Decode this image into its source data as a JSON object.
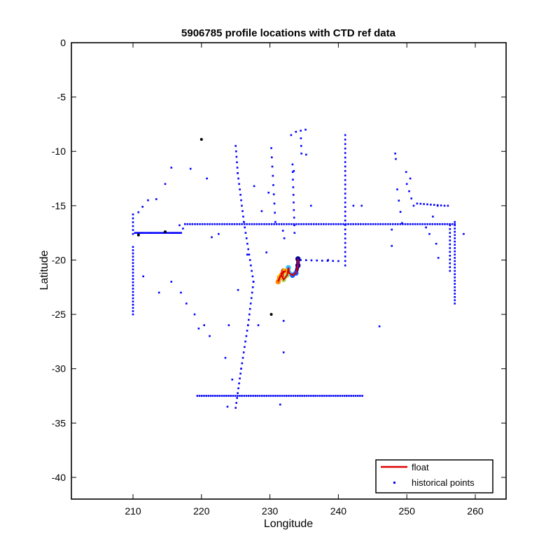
{
  "chart_data": {
    "type": "scatter",
    "title": "5906785 profile locations with CTD ref data",
    "xlabel": "Longitude",
    "ylabel": "Latitude",
    "xlim": [
      201,
      264.5
    ],
    "ylim": [
      -42,
      0
    ],
    "xticks": [
      210,
      220,
      230,
      240,
      250,
      260
    ],
    "yticks": [
      0,
      -5,
      -10,
      -15,
      -20,
      -25,
      -30,
      -35,
      -40
    ],
    "grid": false,
    "legend_position": "bottom-right",
    "colors": {
      "float": "#e00000",
      "historical": "#0000ff",
      "marked": "#000000"
    },
    "legend": [
      "float",
      "historical points"
    ],
    "series": [
      {
        "name": "historical points",
        "marker": "point",
        "color": "#0000ff",
        "lines": [
          {
            "from": [
              210.3,
              -17.5
            ],
            "to": [
              217,
              -17.5
            ],
            "n": 28
          },
          {
            "from": [
              217,
              -17.5
            ],
            "to": [
              217.6,
              -16.7
            ],
            "n": 3
          },
          {
            "from": [
              217.6,
              -16.7
            ],
            "to": [
              257,
              -16.7
            ],
            "n": 110
          },
          {
            "from": [
              257,
              -16.5
            ],
            "to": [
              257,
              -24
            ],
            "n": 26
          },
          {
            "from": [
              256.3,
              -16.8
            ],
            "to": [
              256.3,
              -21
            ],
            "n": 13
          },
          {
            "from": [
              210,
              -18.8
            ],
            "to": [
              210,
              -25
            ],
            "n": 22
          },
          {
            "from": [
              210,
              -15.8
            ],
            "to": [
              210,
              -17.6
            ],
            "n": 6
          },
          {
            "from": [
              219.4,
              -32.5
            ],
            "to": [
              243.5,
              -32.5
            ],
            "n": 75
          },
          {
            "from": [
              225,
              -9.5
            ],
            "to": [
              225.3,
              -12
            ],
            "n": 6
          },
          {
            "from": [
              225.3,
              -12
            ],
            "to": [
              226.2,
              -16.5
            ],
            "n": 10
          },
          {
            "from": [
              226.2,
              -16.5
            ],
            "to": [
              227.6,
              -22
            ],
            "n": 12
          },
          {
            "from": [
              227.6,
              -22
            ],
            "to": [
              226.8,
              -26
            ],
            "n": 9
          },
          {
            "from": [
              226.8,
              -26
            ],
            "to": [
              225.8,
              -30
            ],
            "n": 9
          },
          {
            "from": [
              225.8,
              -30
            ],
            "to": [
              225,
              -33.6
            ],
            "n": 9
          },
          {
            "from": [
              241,
              -8.5
            ],
            "to": [
              241,
              -20.5
            ],
            "n": 30
          },
          {
            "from": [
              234.5,
              -8.1
            ],
            "to": [
              234.6,
              -10.2
            ],
            "n": 4
          },
          {
            "from": [
              233.3,
              -11.2
            ],
            "to": [
              233.6,
              -17.5
            ],
            "n": 10
          },
          {
            "from": [
              230.2,
              -9.7
            ],
            "to": [
              230.8,
              -16.5
            ],
            "n": 9
          },
          {
            "from": [
              251.5,
              -14.8
            ],
            "to": [
              255.5,
              -15
            ],
            "n": 9
          },
          {
            "from": [
              248.6,
              -13.5
            ],
            "to": [
              249.3,
              -16.6
            ],
            "n": 4
          },
          {
            "from": [
              250,
              -13
            ],
            "to": [
              251,
              -15
            ],
            "n": 4
          },
          {
            "from": [
              226.7,
              -19.5
            ],
            "to": [
              224,
              -26
            ],
            "n": 3
          },
          {
            "from": [
              234.5,
              -20
            ],
            "to": [
              240,
              -20.1
            ],
            "n": 8
          }
        ],
        "points": [
          [
            220,
            -8.9
          ],
          [
            215.6,
            -11.5
          ],
          [
            218.4,
            -11.6
          ],
          [
            220.8,
            -12.5
          ],
          [
            214.7,
            -13
          ],
          [
            213.4,
            -14.4
          ],
          [
            212.2,
            -14.5
          ],
          [
            211.4,
            -15.1
          ],
          [
            210.8,
            -15.6
          ],
          [
            216.8,
            -16.8
          ],
          [
            211.5,
            -21.5
          ],
          [
            213.8,
            -23
          ],
          [
            215.6,
            -22
          ],
          [
            217,
            -23
          ],
          [
            217.8,
            -24
          ],
          [
            219,
            -25
          ],
          [
            219.6,
            -26.3
          ],
          [
            220.4,
            -26
          ],
          [
            221.2,
            -27
          ],
          [
            223.5,
            -29
          ],
          [
            224.5,
            -31
          ],
          [
            223.8,
            -33.5
          ],
          [
            231.5,
            -33.3
          ],
          [
            232,
            -28.5
          ],
          [
            232,
            -25.6
          ],
          [
            230.2,
            -25
          ],
          [
            228.3,
            -26
          ],
          [
            227.7,
            -13.2
          ],
          [
            228.8,
            -15.5
          ],
          [
            229.8,
            -13.8
          ],
          [
            231.9,
            -17.3
          ],
          [
            232.1,
            -18
          ],
          [
            229.5,
            -19.3
          ],
          [
            233.1,
            -8.5
          ],
          [
            233.8,
            -8.2
          ],
          [
            235.2,
            -8
          ],
          [
            235.3,
            -10.3
          ],
          [
            233.5,
            -11.8
          ],
          [
            236,
            -15
          ],
          [
            238.5,
            -20
          ],
          [
            242.2,
            -15
          ],
          [
            243.4,
            -15
          ],
          [
            246,
            -26.1
          ],
          [
            247.8,
            -18.7
          ],
          [
            248.3,
            -10.2
          ],
          [
            248.4,
            -10.7
          ],
          [
            247.8,
            -17.2
          ],
          [
            249.9,
            -11.9
          ],
          [
            250.5,
            -12.5
          ],
          [
            253.3,
            -17.6
          ],
          [
            252.8,
            -17
          ],
          [
            253.8,
            -16
          ],
          [
            254.3,
            -18.5
          ],
          [
            254.6,
            -19.8
          ],
          [
            256,
            -15
          ],
          [
            254.5,
            -15
          ],
          [
            258.3,
            -17.6
          ],
          [
            221.5,
            -17.9
          ],
          [
            222.5,
            -17.6
          ]
        ]
      },
      {
        "name": "float",
        "marker": "line",
        "color": "#e00000",
        "track": [
          [
            234.1,
            -19.9
          ],
          [
            234.1,
            -20.5
          ],
          [
            233.8,
            -21.2
          ],
          [
            233.3,
            -21.4
          ],
          [
            232.8,
            -21.2
          ],
          [
            232.7,
            -20.7
          ],
          [
            232.5,
            -21.4
          ],
          [
            232,
            -21.8
          ],
          [
            231.7,
            -21.4
          ],
          [
            232,
            -21
          ],
          [
            231.4,
            -21.6
          ],
          [
            231.2,
            -22
          ],
          [
            231.5,
            -21.5
          ],
          [
            232.2,
            -21
          ]
        ],
        "cluster_colors": [
          "#ffd000",
          "#ff8c00",
          "#e03000",
          "#b0e060",
          "#30c0ff",
          "#1060ff",
          "#0000a0"
        ]
      },
      {
        "name": "marked",
        "marker": "point",
        "color": "#000000",
        "points": [
          [
            220,
            -8.9
          ],
          [
            214.7,
            -17.4
          ],
          [
            210.8,
            -17.7
          ],
          [
            230.2,
            -25
          ]
        ]
      }
    ]
  }
}
